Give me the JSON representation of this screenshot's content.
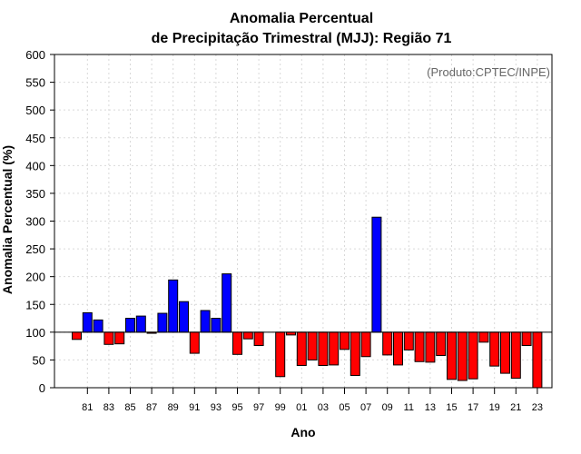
{
  "chart_data": {
    "type": "bar",
    "title_line1": "Anomalia Percentual",
    "title_line2": "de Precipitação Trimestral (MJJ): Região 71",
    "xlabel": "Ano",
    "ylabel": "Anomalia Percentual (%)",
    "credit": "(Produto:CPTEC/INPE)",
    "ylim": [
      0,
      600
    ],
    "yticks": [
      0,
      50,
      100,
      150,
      200,
      250,
      300,
      350,
      400,
      450,
      500,
      550,
      600
    ],
    "baseline": 100,
    "grid": true,
    "colors": {
      "above": "#0000ff",
      "below": "#ff0000",
      "baseline": "#000000"
    },
    "categories": [
      "80",
      "81",
      "82",
      "83",
      "84",
      "85",
      "86",
      "87",
      "88",
      "89",
      "90",
      "91",
      "92",
      "93",
      "94",
      "95",
      "96",
      "97",
      "98",
      "99",
      "00",
      "01",
      "02",
      "03",
      "04",
      "05",
      "06",
      "07",
      "08",
      "09",
      "10",
      "11",
      "12",
      "13",
      "14",
      "15",
      "16",
      "17",
      "18",
      "19",
      "20",
      "21",
      "22",
      "23"
    ],
    "values": [
      87,
      135,
      122,
      78,
      79,
      125,
      129,
      98,
      134,
      194,
      155,
      62,
      139,
      125,
      205,
      60,
      88,
      76,
      100,
      20,
      95,
      40,
      50,
      40,
      41,
      69,
      22,
      56,
      307,
      59,
      41,
      68,
      47,
      46,
      58,
      15,
      13,
      16,
      82,
      39,
      26,
      17,
      76,
      0
    ],
    "xtick_labels": [
      "81",
      "83",
      "85",
      "87",
      "89",
      "91",
      "93",
      "95",
      "97",
      "99",
      "01",
      "03",
      "05",
      "07",
      "09",
      "11",
      "13",
      "15",
      "17",
      "19",
      "21",
      "23"
    ]
  }
}
